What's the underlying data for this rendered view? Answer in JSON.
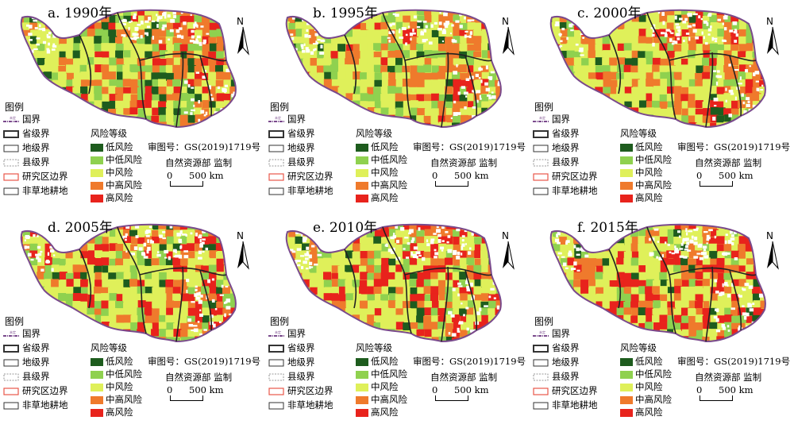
{
  "panels": [
    {
      "title": "a. 1990年"
    },
    {
      "title": "b. 1995年"
    },
    {
      "title": "c. 2000年"
    },
    {
      "title": "d. 2005年"
    },
    {
      "title": "e. 2010年"
    },
    {
      "title": "f. 2015年"
    }
  ],
  "legend": {
    "title": "图例",
    "boundaries": [
      "国界",
      "省级界",
      "地级界",
      "县级界",
      "研究区边界",
      "非草地耕地"
    ],
    "unassigned_symbol_text": "未定",
    "risk_title": "风险等级",
    "risk_levels": [
      {
        "label": "低风险",
        "color": "#1e5c1e"
      },
      {
        "label": "中低风险",
        "color": "#8fd14f"
      },
      {
        "label": "中风险",
        "color": "#dff05a"
      },
      {
        "label": "中高风险",
        "color": "#ef7a2c"
      },
      {
        "label": "高风险",
        "color": "#e8231c"
      }
    ],
    "review_number": "审图号：GS(2019)1719号",
    "supervision": "自然资源部 监制",
    "scale_zero": "0",
    "scale_distance": "500 km"
  },
  "north_label": "N",
  "colors": {
    "low": "#1e5c1e",
    "mid_low": "#8fd14f",
    "mid": "#dff05a",
    "mid_high": "#ef7a2c",
    "high": "#e8231c",
    "national_border": "#7a4a8c",
    "study_area": "#e8574a"
  }
}
